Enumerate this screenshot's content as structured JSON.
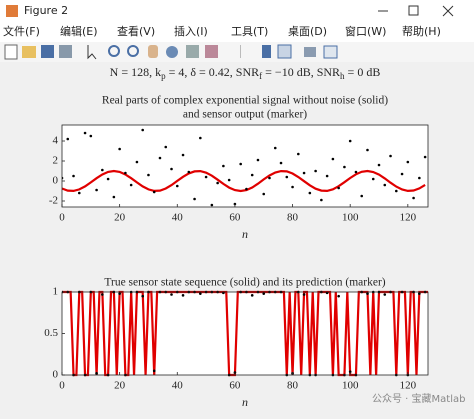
{
  "window": {
    "title": "Figure 2",
    "menu": [
      "文件(F)",
      "编辑(E)",
      "查看(V)",
      "插入(I)",
      "工具(T)",
      "桌面(D)",
      "窗口(W)",
      "帮助(H)"
    ],
    "watermark": "公众号 · 宝藏Matlab"
  },
  "suptitle_parts": [
    "N = 128, k",
    "p",
    " = 4, δ = 0.42, SNR",
    "f",
    " = −10 dB, SNR",
    "h",
    " = 0 dB"
  ],
  "chart_data": [
    {
      "type": "line",
      "title": [
        "Real parts of complex exponential signal without noise (solid)",
        "and sensor output (marker)"
      ],
      "xlabel": "n",
      "xlim": [
        0,
        127
      ],
      "xticks": [
        0,
        20,
        40,
        60,
        80,
        100,
        120
      ],
      "ylim": [
        -2.6,
        5.6
      ],
      "yticks": [
        -2,
        0,
        2,
        4
      ],
      "series": [
        {
          "type": "line",
          "color": "#e00000",
          "x": [
            0,
            2,
            4,
            6,
            8,
            10,
            12,
            14,
            16,
            18,
            20,
            22,
            24,
            26,
            28,
            30,
            32,
            34,
            36,
            38,
            40,
            42,
            44,
            46,
            48,
            50,
            52,
            54,
            56,
            58,
            60,
            62,
            64,
            66,
            68,
            70,
            72,
            74,
            76,
            78,
            80,
            82,
            84,
            86,
            88,
            90,
            92,
            94,
            96,
            98,
            100,
            102,
            104,
            106,
            108,
            110,
            112,
            114,
            116,
            118,
            120,
            122,
            124,
            126
          ],
          "values": [
            -0.75,
            -0.96,
            -0.99,
            -0.84,
            -0.54,
            -0.14,
            0.28,
            0.65,
            0.91,
            1.0,
            0.91,
            0.65,
            0.28,
            -0.14,
            -0.54,
            -0.84,
            -0.99,
            -0.96,
            -0.75,
            -0.41,
            0.01,
            0.42,
            0.76,
            0.96,
            0.99,
            0.83,
            0.53,
            0.13,
            -0.29,
            -0.66,
            -0.91,
            -1.0,
            -0.91,
            -0.65,
            -0.27,
            0.16,
            0.55,
            0.85,
            0.99,
            0.96,
            0.75,
            0.4,
            -0.02,
            -0.43,
            -0.77,
            -0.96,
            -0.99,
            -0.83,
            -0.52,
            -0.12,
            0.3,
            0.67,
            0.92,
            1.0,
            0.9,
            0.64,
            0.26,
            -0.17,
            -0.56,
            -0.85,
            -0.99,
            -0.95,
            -0.74,
            -0.39
          ]
        },
        {
          "type": "scatter",
          "color": "#000000",
          "x": [
            0,
            2,
            4,
            6,
            8,
            10,
            12,
            14,
            16,
            18,
            20,
            22,
            24,
            26,
            28,
            30,
            32,
            34,
            36,
            38,
            40,
            42,
            44,
            46,
            48,
            50,
            52,
            54,
            56,
            58,
            60,
            62,
            64,
            66,
            68,
            70,
            72,
            74,
            76,
            78,
            80,
            82,
            84,
            86,
            88,
            90,
            92,
            94,
            96,
            98,
            100,
            102,
            104,
            106,
            108,
            110,
            112,
            114,
            116,
            118,
            120,
            122,
            124,
            126
          ],
          "values": [
            0.3,
            4.2,
            0.5,
            -1.2,
            4.8,
            4.5,
            -0.9,
            1.1,
            0.2,
            -1.6,
            3.2,
            0.8,
            -0.4,
            1.9,
            5.1,
            0.6,
            -1.1,
            2.3,
            3.4,
            1.2,
            -0.5,
            2.6,
            0.9,
            -1.8,
            4.3,
            0.4,
            -2.4,
            -0.2,
            1.5,
            0.1,
            -2.3,
            1.7,
            -0.8,
            0.6,
            2.1,
            -1.3,
            0.3,
            3.3,
            1.8,
            0.4,
            -0.6,
            2.7,
            0.8,
            -1.2,
            1.0,
            -1.9,
            0.5,
            2.2,
            -0.7,
            1.4,
            4.0,
            0.9,
            -1.5,
            3.1,
            0.2,
            1.6,
            -0.4,
            2.5,
            -1.0,
            0.7,
            1.9,
            -1.7,
            0.3,
            2.4
          ]
        }
      ]
    },
    {
      "type": "line",
      "title": [
        "True sensor state sequence (solid) and its prediction (marker)"
      ],
      "xlabel": "n",
      "xlim": [
        0,
        127
      ],
      "xticks": [
        0,
        20,
        40,
        60,
        80,
        100,
        120
      ],
      "ylim": [
        0,
        1
      ],
      "yticks": [
        0,
        0.5,
        1
      ],
      "series": [
        {
          "type": "line",
          "color": "#e00000",
          "x": [
            0,
            1,
            2,
            3,
            4,
            5,
            6,
            7,
            8,
            9,
            10,
            11,
            12,
            13,
            14,
            15,
            16,
            17,
            18,
            19,
            20,
            21,
            22,
            23,
            24,
            25,
            26,
            27,
            28,
            29,
            30,
            31,
            32,
            33,
            34,
            35,
            36,
            37,
            38,
            39,
            40,
            41,
            42,
            43,
            44,
            45,
            46,
            47,
            48,
            49,
            50,
            51,
            52,
            53,
            54,
            55,
            56,
            57,
            58,
            59,
            60,
            61,
            62,
            63,
            64,
            65,
            66,
            67,
            68,
            69,
            70,
            71,
            72,
            73,
            74,
            75,
            76,
            77,
            78,
            79,
            80,
            81,
            82,
            83,
            84,
            85,
            86,
            87,
            88,
            89,
            90,
            91,
            92,
            93,
            94,
            95,
            96,
            97,
            98,
            99,
            100,
            101,
            102,
            103,
            104,
            105,
            106,
            107,
            108,
            109,
            110,
            111,
            112,
            113,
            114,
            115,
            116,
            117,
            118,
            119,
            120,
            121,
            122,
            123,
            124,
            125,
            126,
            127
          ],
          "values": [
            1,
            1,
            1,
            1,
            0,
            0,
            1,
            1,
            0,
            0,
            1,
            1,
            0,
            1,
            1,
            0,
            0,
            1,
            1,
            0,
            1,
            1,
            0,
            0,
            1,
            0,
            1,
            1,
            1,
            0,
            1,
            1,
            0,
            1,
            1,
            1,
            1,
            1,
            1,
            1,
            1,
            1,
            1,
            1,
            1,
            1,
            1,
            1,
            1,
            1,
            1,
            1,
            1,
            1,
            1,
            1,
            1,
            1,
            0,
            0,
            0,
            1,
            1,
            1,
            1,
            1,
            1,
            1,
            1,
            1,
            1,
            1,
            1,
            1,
            1,
            1,
            1,
            1,
            0,
            1,
            0,
            1,
            1,
            0,
            1,
            1,
            0,
            1,
            0,
            1,
            1,
            1,
            1,
            1,
            0,
            1,
            0,
            0,
            0,
            1,
            0,
            0,
            0,
            1,
            1,
            1,
            1,
            0,
            1,
            0,
            1,
            1,
            1,
            1,
            1,
            1,
            0,
            1,
            1,
            1,
            0,
            1,
            1,
            0,
            1,
            1,
            1,
            1
          ]
        },
        {
          "type": "scatter",
          "color": "#000000",
          "x": [
            0,
            2,
            4,
            6,
            8,
            10,
            12,
            14,
            16,
            18,
            20,
            22,
            24,
            26,
            28,
            30,
            32,
            34,
            36,
            38,
            40,
            42,
            44,
            46,
            48,
            50,
            52,
            54,
            56,
            58,
            60,
            62,
            64,
            66,
            68,
            70,
            72,
            74,
            76,
            78,
            80,
            82,
            84,
            86,
            88,
            90,
            92,
            94,
            96,
            98,
            100,
            102,
            104,
            106,
            108,
            110,
            112,
            114,
            116,
            118,
            120,
            122,
            124,
            126
          ],
          "values": [
            1,
            1,
            0,
            1,
            0,
            1,
            0.02,
            0.97,
            0,
            1,
            0.98,
            0,
            1,
            1,
            0.95,
            1,
            0.05,
            1,
            1,
            0.97,
            1,
            0.96,
            1,
            1,
            0.98,
            1,
            1,
            1,
            0.99,
            0,
            0.03,
            1,
            1,
            0.96,
            1,
            0.98,
            1,
            1,
            1,
            0,
            0.02,
            1,
            0.97,
            0,
            0,
            1,
            0.99,
            0,
            0.95,
            0,
            0.04,
            0,
            1,
            0.98,
            1,
            1,
            0.97,
            1,
            0,
            1,
            0,
            1,
            0.98,
            1
          ]
        }
      ]
    }
  ]
}
